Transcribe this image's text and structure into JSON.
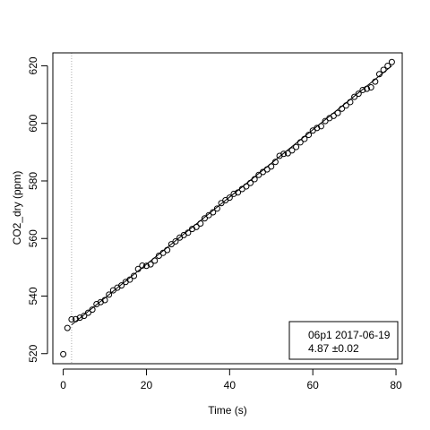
{
  "chart_data": {
    "type": "scatter",
    "title": "",
    "xlabel": "Time (s)",
    "ylabel": "CO2_dry (ppm)",
    "xlim": [
      -2.5,
      81.5
    ],
    "ylim": [
      516.5,
      624.5
    ],
    "xticks": [
      0,
      20,
      40,
      60,
      80
    ],
    "yticks": [
      520,
      540,
      560,
      580,
      600,
      620
    ],
    "grid": false,
    "vertical_reference_line_x": 2,
    "fit_line": {
      "x": [
        2,
        79
      ],
      "y": [
        530.0,
        620.0
      ]
    },
    "legend": {
      "placement": "bottom-right",
      "line1": "06p1 2017-06-19",
      "line2": "4.87 ±0.02"
    },
    "series": [
      {
        "x": [
          0,
          1,
          2,
          3,
          4,
          5,
          6,
          7,
          8,
          9,
          10,
          11,
          12,
          13,
          14,
          15,
          16,
          17,
          18,
          19,
          20,
          21,
          22,
          23,
          24,
          25,
          26,
          27,
          28,
          29,
          30,
          31,
          32,
          33,
          34,
          35,
          36,
          37,
          38,
          39,
          40,
          41,
          42,
          43,
          44,
          45,
          46,
          47,
          48,
          49,
          50,
          51,
          52,
          53,
          54,
          55,
          56,
          57,
          58,
          59,
          60,
          61,
          62,
          63,
          64,
          65,
          66,
          67,
          68,
          69,
          70,
          71,
          72,
          73,
          74,
          75,
          76,
          77,
          78,
          79
        ],
        "y": [
          519.8,
          528.9,
          531.9,
          532.0,
          532.5,
          533.1,
          534.2,
          535.3,
          537.2,
          537.9,
          538.6,
          540.5,
          542.0,
          542.9,
          543.7,
          544.9,
          545.7,
          547.0,
          549.4,
          550.6,
          550.5,
          551.0,
          552.3,
          554.0,
          555.0,
          556.0,
          558.0,
          559.0,
          560.3,
          561.2,
          562.0,
          563.3,
          564.0,
          565.2,
          567.0,
          568.1,
          569.1,
          570.4,
          572.3,
          573.3,
          574.2,
          575.5,
          576.0,
          577.2,
          578.1,
          579.3,
          580.6,
          582.1,
          583.1,
          584.0,
          585.0,
          586.6,
          588.7,
          589.4,
          589.6,
          590.6,
          591.8,
          593.4,
          594.6,
          596.0,
          597.5,
          598.4,
          599.0,
          600.8,
          601.8,
          602.6,
          603.6,
          605.1,
          606.2,
          607.4,
          609.2,
          610.3,
          611.6,
          612.0,
          612.5,
          614.5,
          617.1,
          618.6,
          620.0,
          621.3
        ]
      }
    ]
  }
}
